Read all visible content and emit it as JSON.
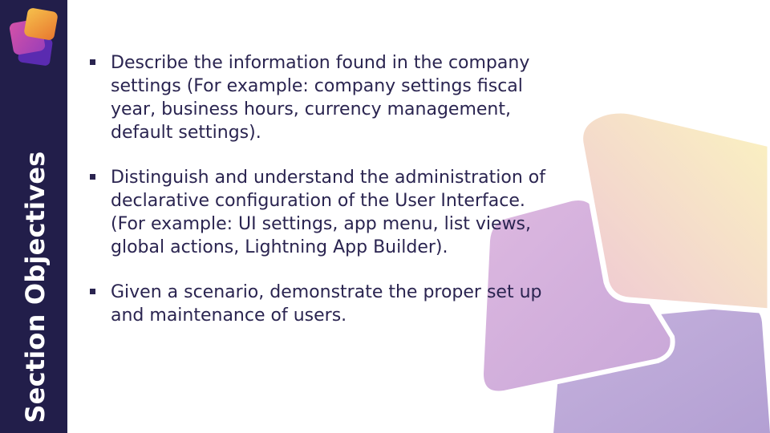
{
  "sidebar": {
    "title": "Section Objectives",
    "logo_icon": "stacked-tiles-logo",
    "background": "#221e4a"
  },
  "bullets": [
    {
      "text": "Describe the information found in the company settings (For example: company settings fiscal year, business hours, currency management, default settings)."
    },
    {
      "text": "Distinguish and understand the administration of declarative configuration of the User Interface. (For example: UI settings, app menu, list views, global actions, Lightning App Builder)."
    },
    {
      "text": "Given a scenario, demonstrate the proper set up and maintenance of users."
    }
  ],
  "colors": {
    "text": "#2a2450",
    "tile_yellow": "#f9edbf",
    "tile_pink": "#e4b6d8",
    "tile_purple": "#bba8d6"
  }
}
